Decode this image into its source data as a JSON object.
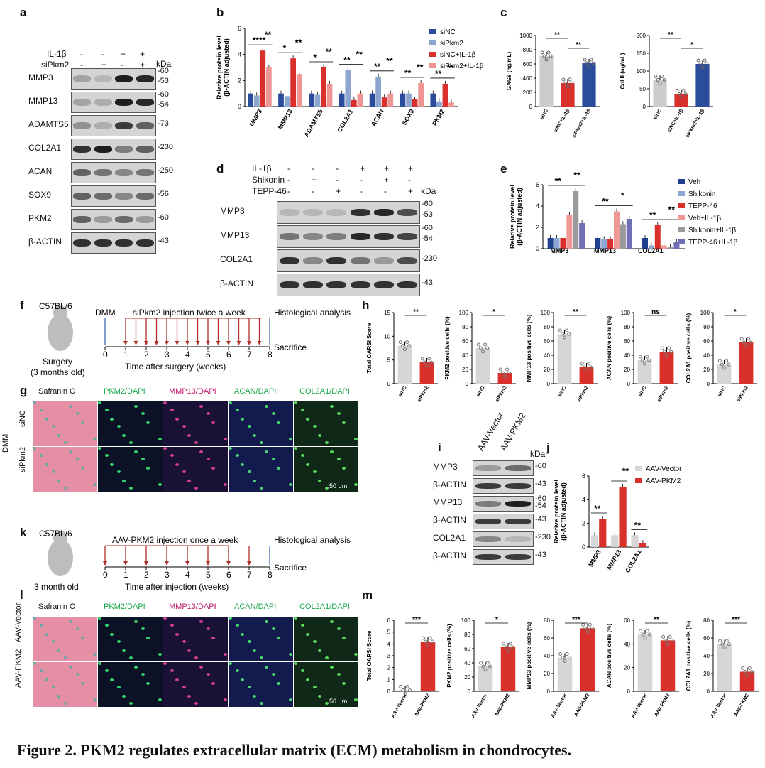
{
  "caption": "Figure 2. PKM2 regulates extracellular matrix (ECM) metabolism in chondrocytes.",
  "panels": [
    "a",
    "b",
    "c",
    "d",
    "e",
    "f",
    "g",
    "h",
    "i",
    "j",
    "k",
    "l",
    "m"
  ],
  "colors": {
    "siNC": "#2b4c9b",
    "siPkm2": "#8da6cf",
    "siNC_IL": "#d9302b",
    "siPkm2_IL": "#ef9593",
    "grey": "#d0d0d0",
    "red": "#d9302b"
  },
  "panel_a": {
    "rows": [
      {
        "label": "IL-1β",
        "vals": [
          "-",
          "-",
          "+",
          "+"
        ]
      },
      {
        "label": "siPkm2",
        "vals": [
          "-",
          "+",
          "-",
          "+"
        ]
      }
    ],
    "kda": "kDa",
    "bands": [
      {
        "name": "MMP3",
        "sizes": "60\n53"
      },
      {
        "name": "MMP13",
        "sizes": "60\n54"
      },
      {
        "name": "ADAMTS5",
        "sizes": "73"
      },
      {
        "name": "COL2A1",
        "sizes": "230"
      },
      {
        "name": "ACAN",
        "sizes": "250"
      },
      {
        "name": "SOX9",
        "sizes": "56"
      },
      {
        "name": "PKM2",
        "sizes": "60"
      },
      {
        "name": "β-ACTIN",
        "sizes": "43"
      }
    ]
  },
  "panel_d": {
    "rows": [
      {
        "label": "IL-1β",
        "vals": [
          "-",
          "-",
          "-",
          "+",
          "+",
          "+"
        ]
      },
      {
        "label": "Shikonin",
        "vals": [
          "-",
          "+",
          "-",
          "-",
          "+",
          "-"
        ]
      },
      {
        "label": "TEPP-46",
        "vals": [
          "-",
          "-",
          "+",
          "-",
          "-",
          "+"
        ]
      }
    ],
    "kda": "kDa",
    "bands": [
      {
        "name": "MMP3",
        "sizes": "60\n53"
      },
      {
        "name": "MMP13",
        "sizes": "60\n54"
      },
      {
        "name": "COL2A1",
        "sizes": "230"
      },
      {
        "name": "β-ACTIN",
        "sizes": "43"
      }
    ]
  },
  "panel_i": {
    "cols": [
      "AAV-Vector",
      "AAV-PKM2"
    ],
    "kda": "kDa",
    "bands": [
      {
        "name": "MMP3",
        "sizes": "60"
      },
      {
        "name": "β-ACTIN",
        "sizes": "43"
      },
      {
        "name": "MMP13",
        "sizes": "60\n54"
      },
      {
        "name": "β-ACTIN",
        "sizes": "43"
      },
      {
        "name": "COL2A1",
        "sizes": "230"
      },
      {
        "name": "β-ACTIN",
        "sizes": "43"
      }
    ]
  },
  "panel_f": {
    "strain": "C57BL/6",
    "surgery": "Surgery",
    "age": "(3 months old)",
    "dmm": "DMM",
    "injection": "siPkm2 injection twice a week",
    "histo": "Histological analysis",
    "sacrifice": "Sacrifice",
    "axis": "Time after surgery (weeks)",
    "ticks": [
      "0",
      "1",
      "2",
      "3",
      "4",
      "5",
      "6",
      "7",
      "8"
    ]
  },
  "panel_k": {
    "strain": "C57BL/6",
    "age": "3 month old",
    "injection": "AAV-PKM2 injection once  a week",
    "histo": "Histological analysis",
    "sacrifice": "Sacrifice",
    "axis": "Time after injection (weeks)",
    "ticks": [
      "0",
      "1",
      "2",
      "3",
      "4",
      "5",
      "6",
      "7",
      "8"
    ]
  },
  "panel_g": {
    "headers": [
      "Safranin O",
      "PKM2/DAPI",
      "MMP13/DAPI",
      "ACAN/DAPI",
      "COL2A1/DAPI"
    ],
    "group": "DMM",
    "rows": [
      "siNC",
      "siPkm2"
    ],
    "scale": "50 μm"
  },
  "panel_l": {
    "headers": [
      "Safranin O",
      "PKM2/DAPI",
      "MMP13/DAPI",
      "ACAN/DAPI",
      "COL2A1/DAPI"
    ],
    "rows": [
      "AAV-Vector",
      "AAV-PKM2"
    ],
    "scale": "50 μm"
  },
  "chart_data": [
    {
      "id": "b",
      "type": "bar",
      "ylabel": "Relative protein level\n(β-ACTIN adjusted)",
      "ylim": [
        0,
        6
      ],
      "yticks": [
        "0",
        "2",
        "4",
        "6"
      ],
      "categories": [
        "MMP3",
        "MMP13",
        "ADAMTS5",
        "COL2A1",
        "ACAN",
        "SOX9",
        "PKM2"
      ],
      "series": [
        {
          "name": "siNC",
          "values": [
            1.0,
            1.0,
            1.0,
            1.0,
            1.0,
            1.0,
            1.0
          ]
        },
        {
          "name": "siPkm2",
          "values": [
            0.85,
            0.8,
            0.9,
            2.8,
            2.3,
            1.0,
            0.4
          ]
        },
        {
          "name": "siNC+IL-1β",
          "values": [
            4.3,
            3.7,
            3.0,
            0.5,
            0.7,
            0.55,
            1.75
          ]
        },
        {
          "name": "siPkm2+IL-1β",
          "values": [
            3.0,
            2.5,
            1.75,
            1.0,
            1.0,
            1.8,
            0.3
          ]
        }
      ],
      "sig": [
        "*",
        "**",
        "****",
        "**",
        "*",
        "**",
        "*",
        "**",
        "**",
        "**",
        "**",
        "**",
        "**",
        "**",
        "**",
        "**",
        "**",
        "**"
      ]
    },
    {
      "id": "c1",
      "type": "bar",
      "ylabel": "GAGs (ng/mL)",
      "ylim": [
        0,
        1000
      ],
      "yticks": [
        "0",
        "200",
        "400",
        "600",
        "800",
        "1000"
      ],
      "categories": [
        "siNC",
        "siNC+IL-1β",
        "siPkm2+IL-1β"
      ],
      "values": [
        710,
        330,
        610
      ],
      "sig": [
        "**",
        "**"
      ]
    },
    {
      "id": "c2",
      "type": "bar",
      "ylabel": "Col II (ng/mL)",
      "ylim": [
        0,
        200
      ],
      "yticks": [
        "0",
        "50",
        "100",
        "150",
        "200"
      ],
      "categories": [
        "siNC",
        "siNC+IL-1β",
        "siPkm2+IL-1β"
      ],
      "values": [
        75,
        35,
        120
      ],
      "sig": [
        "**",
        "*"
      ]
    },
    {
      "id": "e",
      "type": "bar",
      "ylabel": "Relative protein level\n(β-ACTIN adjusted)",
      "ylim": [
        0,
        6
      ],
      "yticks": [
        "0",
        "2",
        "4",
        "6"
      ],
      "categories": [
        "MMP3",
        "MMP13",
        "COL2A1"
      ],
      "series": [
        {
          "name": "Veh",
          "values": [
            1.0,
            1.0,
            1.0
          ]
        },
        {
          "name": "Shikonin",
          "values": [
            1.0,
            0.9,
            0.3
          ]
        },
        {
          "name": "TEPP-46",
          "values": [
            1.0,
            0.9,
            2.2
          ]
        },
        {
          "name": "Veh+IL-1β",
          "values": [
            3.2,
            3.5,
            0.3
          ]
        },
        {
          "name": "Shikonin+IL-1β",
          "values": [
            5.4,
            2.3,
            0.2
          ]
        },
        {
          "name": "TEPP-46+IL-1β",
          "values": [
            2.4,
            2.8,
            0.6
          ]
        }
      ],
      "sig": [
        "**",
        "**",
        "**",
        "**",
        "*",
        "*",
        "**",
        "**",
        "**",
        "*"
      ]
    },
    {
      "id": "h1",
      "type": "bar",
      "ylabel": "Total OARSI Score",
      "ylim": [
        0,
        15
      ],
      "yticks": [
        "0",
        "5",
        "10",
        "15"
      ],
      "categories": [
        "siNC",
        "siPkm2"
      ],
      "values": [
        8,
        4.5
      ],
      "sig": "**"
    },
    {
      "id": "h2",
      "type": "bar",
      "ylabel": "PKM2 positive cells (%)",
      "ylim": [
        0,
        100
      ],
      "yticks": [
        "0",
        "20",
        "40",
        "60",
        "80",
        "100"
      ],
      "categories": [
        "siNC",
        "siPkm2"
      ],
      "values": [
        50,
        15
      ],
      "sig": "*"
    },
    {
      "id": "h3",
      "type": "bar",
      "ylabel": "MMP13 positive cells (%)",
      "ylim": [
        0,
        100
      ],
      "yticks": [
        "0",
        "20",
        "40",
        "60",
        "80",
        "100"
      ],
      "categories": [
        "siNC",
        "siPkm2"
      ],
      "values": [
        70,
        23
      ],
      "sig": "**"
    },
    {
      "id": "h4",
      "type": "bar",
      "ylabel": "ACAN positive cells (%)",
      "ylim": [
        0,
        100
      ],
      "yticks": [
        "0",
        "20",
        "40",
        "60",
        "80",
        "100"
      ],
      "categories": [
        "siNC",
        "siPkm2"
      ],
      "values": [
        33,
        45
      ],
      "sig": "ns"
    },
    {
      "id": "h5",
      "type": "bar",
      "ylabel": "COL2A1 positive cells (%)",
      "ylim": [
        0,
        100
      ],
      "yticks": [
        "0",
        "20",
        "40",
        "60",
        "80",
        "100"
      ],
      "categories": [
        "siNC",
        "siPkm2"
      ],
      "values": [
        27,
        58
      ],
      "sig": "*"
    },
    {
      "id": "j",
      "type": "bar",
      "ylabel": "Relative protein level\n(β-ACTIN adjusted)",
      "ylim": [
        0,
        6
      ],
      "yticks": [
        "0",
        "2",
        "4",
        "6"
      ],
      "categories": [
        "MMP3",
        "MMP13",
        "COL2A1"
      ],
      "series": [
        {
          "name": "AAV-Vector",
          "values": [
            1.0,
            1.0,
            1.0
          ]
        },
        {
          "name": "AAV-PKM2",
          "values": [
            2.4,
            5.1,
            0.35
          ]
        }
      ],
      "sig": [
        "**",
        "**",
        "**"
      ]
    },
    {
      "id": "m1",
      "type": "bar",
      "ylabel": "Total OARSI Score",
      "ylim": [
        0,
        6
      ],
      "yticks": [
        "0",
        "1",
        "2",
        "3",
        "4",
        "5",
        "6"
      ],
      "categories": [
        "AAV-Vector",
        "AAV-PKM2"
      ],
      "values": [
        0.1,
        4.2
      ],
      "sig": "***"
    },
    {
      "id": "m2",
      "type": "bar",
      "ylabel": "PKM2 positive cells (%)",
      "ylim": [
        0,
        100
      ],
      "yticks": [
        "0",
        "20",
        "40",
        "60",
        "80",
        "100"
      ],
      "categories": [
        "AAV-Vector",
        "AAV-PKM2"
      ],
      "values": [
        35,
        62
      ],
      "sig": "*"
    },
    {
      "id": "m3",
      "type": "bar",
      "ylabel": "MMP13 positive cells (%)",
      "ylim": [
        0,
        80
      ],
      "yticks": [
        "0",
        "20",
        "40",
        "60",
        "80"
      ],
      "categories": [
        "AAV-Vector",
        "AAV-PKM2"
      ],
      "values": [
        38,
        71
      ],
      "sig": "***"
    },
    {
      "id": "m4",
      "type": "bar",
      "ylabel": "ACAN positive cells (%)",
      "ylim": [
        0,
        60
      ],
      "yticks": [
        "0",
        "20",
        "40",
        "60"
      ],
      "categories": [
        "AAV-Vector",
        "AAV-PKM2"
      ],
      "values": [
        48,
        43
      ],
      "sig": "**"
    },
    {
      "id": "m5",
      "type": "bar",
      "ylabel": "COL2A1 positive cells (%)",
      "ylim": [
        0,
        80
      ],
      "yticks": [
        "0",
        "20",
        "40",
        "60",
        "80"
      ],
      "categories": [
        "AAV-Vector",
        "AAV-PKM2"
      ],
      "values": [
        53,
        22
      ],
      "sig": "***"
    }
  ]
}
